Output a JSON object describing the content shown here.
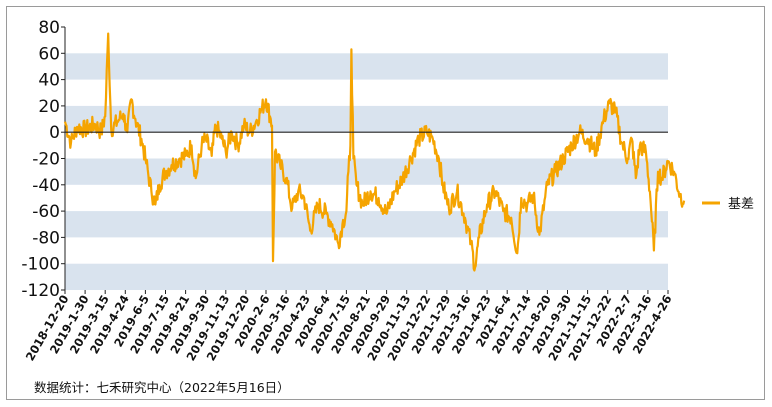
{
  "chart_data": {
    "type": "line",
    "ylim": [
      -120,
      80
    ],
    "yticks": [
      80,
      60,
      40,
      20,
      0,
      -20,
      -40,
      -60,
      -80,
      -100,
      -120
    ],
    "xtick_labels": [
      "2018-12-20",
      "2019-1-30",
      "2019-3-15",
      "2019-4-24",
      "2019-6-5",
      "2019-7-15",
      "2019-8-21",
      "2019-9-30",
      "2019-11-13",
      "2019-12-20",
      "2020-2-6",
      "2020-3-16",
      "2020-4-23",
      "2020-6-4",
      "2020-7-15",
      "2020-8-21",
      "2020-9-29",
      "2020-11-13",
      "2020-12-22",
      "2021-1-29",
      "2021-3-16",
      "2021-4-23",
      "2021-6-4",
      "2021-7-14",
      "2021-8-20",
      "2021-9-30",
      "2021-11-15",
      "2021-12-22",
      "2022-2-7",
      "2022-3-16",
      "2022-4-26"
    ],
    "grid_bands": true,
    "legend_position": "right",
    "series": [
      {
        "name": "基差",
        "color": "#F5A400",
        "anchors": [
          [
            0,
            8
          ],
          [
            0.3,
            -8
          ],
          [
            0.6,
            4
          ],
          [
            1.0,
            2
          ],
          [
            1.5,
            6
          ],
          [
            1.8,
            0
          ],
          [
            2.0,
            12
          ],
          [
            2.15,
            75
          ],
          [
            2.3,
            2
          ],
          [
            2.6,
            8
          ],
          [
            2.9,
            14
          ],
          [
            3.1,
            0
          ],
          [
            3.3,
            25
          ],
          [
            3.5,
            10
          ],
          [
            3.8,
            -5
          ],
          [
            4.0,
            -20
          ],
          [
            4.3,
            -45
          ],
          [
            4.5,
            -55
          ],
          [
            4.7,
            -40
          ],
          [
            5.0,
            -30
          ],
          [
            5.3,
            -25
          ],
          [
            5.7,
            -20
          ],
          [
            6.0,
            -18
          ],
          [
            6.3,
            -10
          ],
          [
            6.5,
            -35
          ],
          [
            6.8,
            -10
          ],
          [
            7.0,
            -5
          ],
          [
            7.3,
            -18
          ],
          [
            7.5,
            5
          ],
          [
            7.8,
            -5
          ],
          [
            8.0,
            -15
          ],
          [
            8.3,
            0
          ],
          [
            8.6,
            -10
          ],
          [
            8.9,
            5
          ],
          [
            9.2,
            0
          ],
          [
            9.5,
            8
          ],
          [
            9.8,
            18
          ],
          [
            10.0,
            25
          ],
          [
            10.2,
            12
          ],
          [
            10.3,
            5
          ],
          [
            10.35,
            -98
          ],
          [
            10.45,
            -15
          ],
          [
            10.7,
            -25
          ],
          [
            11.0,
            -35
          ],
          [
            11.3,
            -58
          ],
          [
            11.6,
            -45
          ],
          [
            11.9,
            -50
          ],
          [
            12.2,
            -75
          ],
          [
            12.6,
            -55
          ],
          [
            13.0,
            -62
          ],
          [
            13.3,
            -70
          ],
          [
            13.6,
            -85
          ],
          [
            13.8,
            -70
          ],
          [
            14.0,
            -60
          ],
          [
            14.1,
            -30
          ],
          [
            14.2,
            -10
          ],
          [
            14.25,
            63
          ],
          [
            14.35,
            -20
          ],
          [
            14.5,
            -40
          ],
          [
            14.8,
            -55
          ],
          [
            15.2,
            -45
          ],
          [
            15.6,
            -50
          ],
          [
            16.0,
            -62
          ],
          [
            16.4,
            -45
          ],
          [
            16.8,
            -35
          ],
          [
            17.2,
            -20
          ],
          [
            17.6,
            -5
          ],
          [
            18.0,
            0
          ],
          [
            18.3,
            -5
          ],
          [
            18.6,
            -20
          ],
          [
            18.8,
            -40
          ],
          [
            19.1,
            -58
          ],
          [
            19.5,
            -45
          ],
          [
            19.9,
            -65
          ],
          [
            20.2,
            -85
          ],
          [
            20.4,
            -103
          ],
          [
            20.6,
            -80
          ],
          [
            21.0,
            -55
          ],
          [
            21.4,
            -45
          ],
          [
            21.8,
            -60
          ],
          [
            22.2,
            -65
          ],
          [
            22.5,
            -92
          ],
          [
            22.7,
            -50
          ],
          [
            23.0,
            -55
          ],
          [
            23.3,
            -48
          ],
          [
            23.6,
            -78
          ],
          [
            24.0,
            -40
          ],
          [
            24.4,
            -30
          ],
          [
            24.8,
            -20
          ],
          [
            25.2,
            -10
          ],
          [
            25.6,
            0
          ],
          [
            26.0,
            -5
          ],
          [
            26.4,
            -15
          ],
          [
            26.8,
            10
          ],
          [
            27.1,
            22
          ],
          [
            27.4,
            15
          ],
          [
            27.7,
            -8
          ],
          [
            28.0,
            -20
          ],
          [
            28.2,
            -5
          ],
          [
            28.4,
            -35
          ],
          [
            28.6,
            -10
          ],
          [
            28.9,
            -15
          ],
          [
            29.1,
            -45
          ],
          [
            29.3,
            -90
          ],
          [
            29.5,
            -30
          ],
          [
            29.7,
            -35
          ],
          [
            30.0,
            -22
          ],
          [
            30.3,
            -30
          ],
          [
            30.6,
            -48
          ],
          [
            30.8,
            -52
          ]
        ]
      }
    ]
  },
  "footer": {
    "source_text": "数据统计：七禾研究中心（2022年5月16日）"
  }
}
